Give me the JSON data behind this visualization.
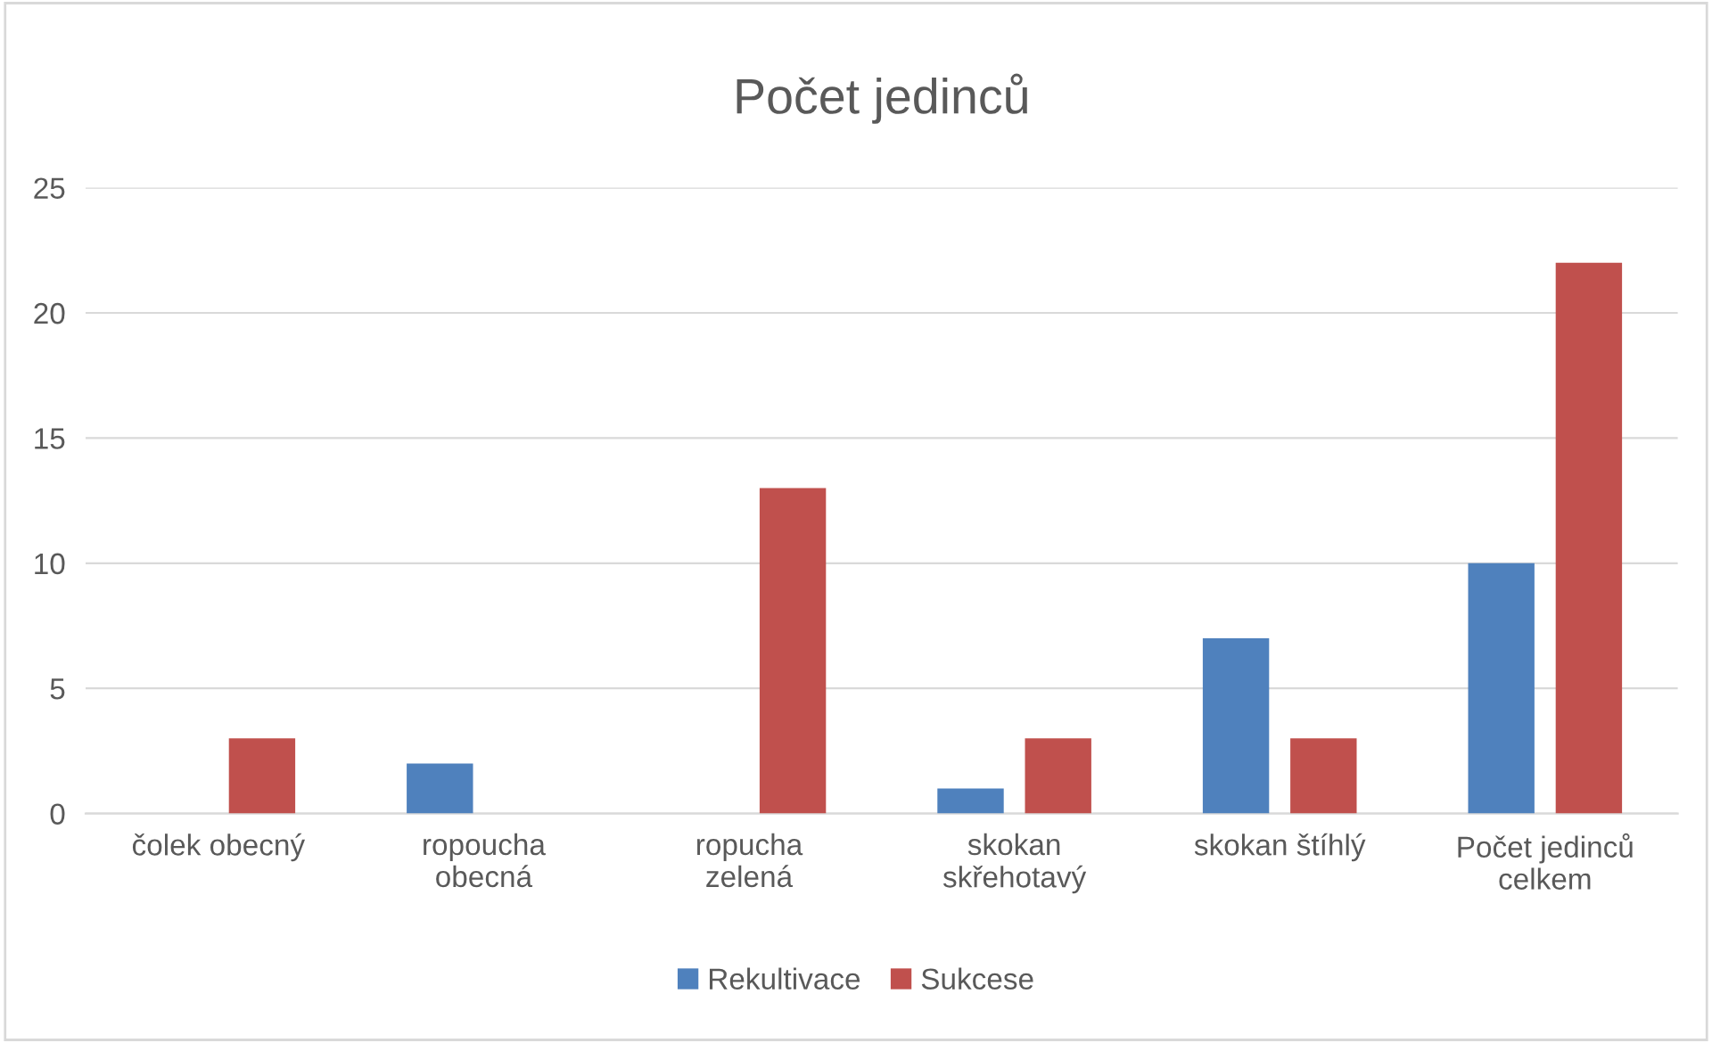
{
  "chart_data": {
    "type": "bar",
    "title": "Počet jedinců",
    "categories": [
      "čolek obecný",
      "ropoucha\nobecná",
      "ropucha\nzelená",
      "skokan\nskřehotavý",
      "skokan štíhlý",
      "Počet jedinců\ncelkem"
    ],
    "series": [
      {
        "name": "Rekultivace",
        "color": "#4f81bd",
        "values": [
          0,
          2,
          0,
          1,
          7,
          10
        ]
      },
      {
        "name": "Sukcese",
        "color": "#c0504d",
        "values": [
          3,
          0,
          13,
          3,
          3,
          22
        ]
      }
    ],
    "ylim": [
      0,
      25
    ],
    "yticks": [
      0,
      5,
      10,
      15,
      20,
      25
    ],
    "grid": "y",
    "legend": "bottom"
  }
}
